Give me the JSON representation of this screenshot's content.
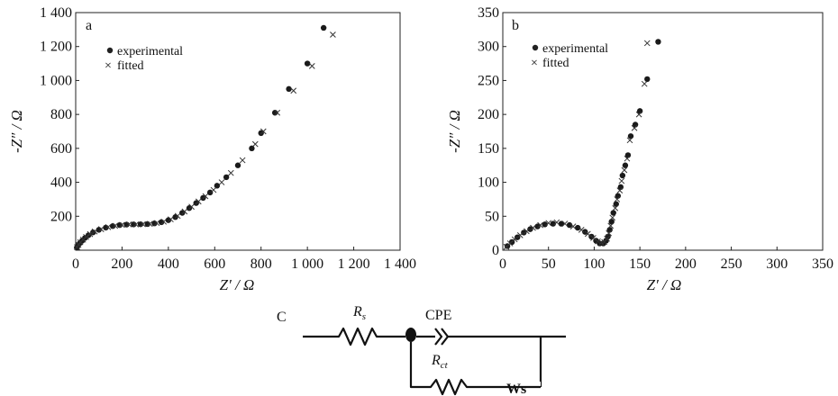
{
  "chart_data": [
    {
      "panel": "a",
      "type": "scatter",
      "xlabel": "Z′ / Ω",
      "ylabel": "-Z″ / Ω",
      "xlim": [
        0,
        1400
      ],
      "ylim": [
        0,
        1400
      ],
      "xticks": [
        "0",
        "200",
        "400",
        "600",
        "800",
        "1 000",
        "1 200",
        "1 400"
      ],
      "yticks": [
        "200",
        "400",
        "600",
        "800",
        "1 000",
        "1 200",
        "1 400"
      ],
      "legend": [
        "experimental",
        "fitted"
      ],
      "legend_position": "top-left",
      "series": [
        {
          "name": "experimental",
          "marker": "dot",
          "points": [
            [
              5,
              15
            ],
            [
              10,
              28
            ],
            [
              18,
              42
            ],
            [
              28,
              56
            ],
            [
              40,
              72
            ],
            [
              55,
              88
            ],
            [
              75,
              105
            ],
            [
              100,
              120
            ],
            [
              130,
              133
            ],
            [
              160,
              142
            ],
            [
              190,
              148
            ],
            [
              220,
              151
            ],
            [
              250,
              152
            ],
            [
              280,
              153
            ],
            [
              310,
              154
            ],
            [
              340,
              158
            ],
            [
              370,
              165
            ],
            [
              400,
              177
            ],
            [
              430,
              195
            ],
            [
              460,
              220
            ],
            [
              490,
              248
            ],
            [
              520,
              278
            ],
            [
              550,
              308
            ],
            [
              580,
              340
            ],
            [
              610,
              380
            ],
            [
              650,
              430
            ],
            [
              700,
              500
            ],
            [
              760,
              600
            ],
            [
              800,
              690
            ],
            [
              860,
              810
            ],
            [
              920,
              950
            ],
            [
              1000,
              1100
            ],
            [
              1070,
              1310
            ]
          ]
        },
        {
          "name": "fitted",
          "marker": "x",
          "points": [
            [
              6,
              18
            ],
            [
              12,
              32
            ],
            [
              20,
              47
            ],
            [
              32,
              62
            ],
            [
              45,
              78
            ],
            [
              62,
              95
            ],
            [
              82,
              110
            ],
            [
              110,
              124
            ],
            [
              140,
              136
            ],
            [
              170,
              144
            ],
            [
              200,
              149
            ],
            [
              230,
              152
            ],
            [
              260,
              152
            ],
            [
              290,
              153
            ],
            [
              320,
              155
            ],
            [
              350,
              160
            ],
            [
              380,
              168
            ],
            [
              410,
              182
            ],
            [
              440,
              202
            ],
            [
              470,
              228
            ],
            [
              500,
              256
            ],
            [
              530,
              287
            ],
            [
              560,
              318
            ],
            [
              595,
              355
            ],
            [
              630,
              400
            ],
            [
              670,
              455
            ],
            [
              720,
              530
            ],
            [
              775,
              625
            ],
            [
              810,
              700
            ],
            [
              870,
              810
            ],
            [
              940,
              940
            ],
            [
              1020,
              1085
            ],
            [
              1110,
              1270
            ]
          ]
        }
      ]
    },
    {
      "panel": "b",
      "type": "scatter",
      "xlabel": "Z′ / Ω",
      "ylabel": "-Z″ / Ω",
      "xlim": [
        0,
        350
      ],
      "ylim": [
        0,
        350
      ],
      "xticks": [
        "0",
        "50",
        "100",
        "150",
        "200",
        "250",
        "300",
        "350"
      ],
      "yticks": [
        "0",
        "50",
        "100",
        "150",
        "200",
        "250",
        "300",
        "350"
      ],
      "legend": [
        "experimental",
        "fitted"
      ],
      "legend_position": "top-left",
      "series": [
        {
          "name": "experimental",
          "marker": "dot",
          "points": [
            [
              5,
              6
            ],
            [
              10,
              12
            ],
            [
              16,
              19
            ],
            [
              23,
              26
            ],
            [
              30,
              31
            ],
            [
              38,
              35
            ],
            [
              46,
              38
            ],
            [
              55,
              39
            ],
            [
              64,
              39
            ],
            [
              73,
              37
            ],
            [
              82,
              33
            ],
            [
              90,
              27
            ],
            [
              97,
              20
            ],
            [
              102,
              14
            ],
            [
              106,
              10
            ],
            [
              110,
              10
            ],
            [
              113,
              14
            ],
            [
              115,
              20
            ],
            [
              117,
              30
            ],
            [
              119,
              42
            ],
            [
              121,
              55
            ],
            [
              124,
              68
            ],
            [
              126,
              80
            ],
            [
              129,
              93
            ],
            [
              131,
              110
            ],
            [
              134,
              125
            ],
            [
              137,
              140
            ],
            [
              140,
              168
            ],
            [
              145,
              185
            ],
            [
              150,
              205
            ],
            [
              158,
              252
            ],
            [
              170,
              307
            ]
          ]
        },
        {
          "name": "fitted",
          "marker": "x",
          "points": [
            [
              4,
              5
            ],
            [
              8,
              10
            ],
            [
              13,
              16
            ],
            [
              19,
              22
            ],
            [
              26,
              28
            ],
            [
              33,
              33
            ],
            [
              41,
              37
            ],
            [
              50,
              40
            ],
            [
              59,
              41
            ],
            [
              68,
              39
            ],
            [
              77,
              35
            ],
            [
              86,
              30
            ],
            [
              93,
              24
            ],
            [
              99,
              18
            ],
            [
              104,
              13
            ],
            [
              108,
              11
            ],
            [
              111,
              12
            ],
            [
              114,
              17
            ],
            [
              116,
              25
            ],
            [
              118,
              36
            ],
            [
              120,
              48
            ],
            [
              123,
              62
            ],
            [
              125,
              75
            ],
            [
              128,
              88
            ],
            [
              130,
              102
            ],
            [
              133,
              118
            ],
            [
              136,
              135
            ],
            [
              139,
              162
            ],
            [
              144,
              180
            ],
            [
              149,
              200
            ],
            [
              155,
              245
            ],
            [
              158,
              305
            ]
          ]
        }
      ]
    }
  ],
  "circuit": {
    "label": "C",
    "rs_main": "R",
    "rs_sub": "s",
    "cpe": "CPE",
    "rct_main": "R",
    "rct_sub": "ct",
    "ws": "Ws"
  }
}
